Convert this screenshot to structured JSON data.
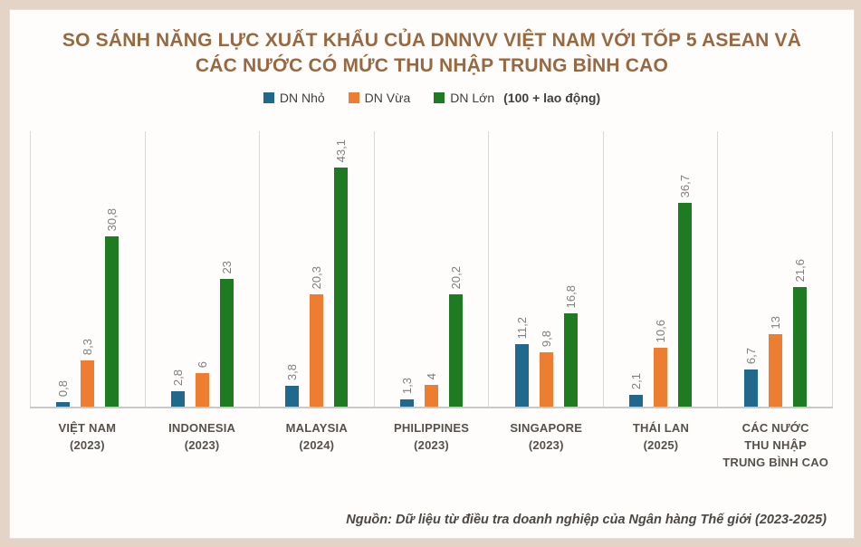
{
  "title": {
    "line1": "SO SÁNH NĂNG LỰC XUẤT KHẨU CỦA DNNVV VIỆT NAM VỚI TỐP 5 ASEAN VÀ",
    "line2": "CÁC NƯỚC CÓ MỨC THU NHẬP TRUNG BÌNH CAO"
  },
  "legend": {
    "items": [
      {
        "label": "DN Nhỏ",
        "suffix": "",
        "color": "#20698c"
      },
      {
        "label": "DN Vừa",
        "suffix": "",
        "color": "#ed7d31"
      },
      {
        "label": "DN Lớn",
        "suffix": "(100 + lao động)",
        "color": "#1e7b22"
      }
    ]
  },
  "chart_data": {
    "type": "bar",
    "title": "SO SÁNH NĂNG LỰC XUẤT KHẨU CỦA DNNVV VIỆT NAM VỚI TỐP 5 ASEAN VÀ CÁC NƯỚC CÓ MỨC THU NHẬP TRUNG BÌNH CAO",
    "xlabel": "",
    "ylabel": "",
    "ylim": [
      0,
      50
    ],
    "grid": "vertical-group-separators",
    "legend_position": "top-center",
    "value_label_style": "rotated-90-above-bar, comma decimal separator",
    "categories": [
      {
        "lines": [
          "VIỆT NAM",
          "(2023)"
        ]
      },
      {
        "lines": [
          "INDONESIA",
          "(2023)"
        ]
      },
      {
        "lines": [
          "MALAYSIA",
          "(2024)"
        ]
      },
      {
        "lines": [
          "PHILIPPINES",
          "(2023)"
        ]
      },
      {
        "lines": [
          "SINGAPORE",
          "(2023)"
        ]
      },
      {
        "lines": [
          "THÁI LAN",
          "(2025)"
        ]
      },
      {
        "lines": [
          "CÁC NƯỚC",
          "THU NHẬP",
          "TRUNG BÌNH CAO"
        ]
      }
    ],
    "series": [
      {
        "name": "DN Nhỏ",
        "color": "#20698c",
        "values": [
          0.8,
          2.8,
          3.8,
          1.3,
          11.2,
          2.1,
          6.7
        ],
        "labels": [
          "0,8",
          "2,8",
          "3,8",
          "1,3",
          "11,2",
          "2,1",
          "6,7"
        ]
      },
      {
        "name": "DN Vừa",
        "color": "#ed7d31",
        "values": [
          8.3,
          6,
          20.3,
          4,
          9.8,
          10.6,
          13
        ],
        "labels": [
          "8,3",
          "6",
          "20,3",
          "4",
          "9,8",
          "10,6",
          "13"
        ]
      },
      {
        "name": "DN Lớn (100 + lao động)",
        "color": "#1e7b22",
        "values": [
          30.8,
          23,
          43.1,
          20.2,
          16.8,
          36.7,
          21.6
        ],
        "labels": [
          "30,8",
          "23",
          "43,1",
          "20,2",
          "16,8",
          "36,7",
          "21,6"
        ]
      }
    ]
  },
  "source": "Nguồn: Dữ liệu từ điều tra doanh nghiệp của Ngân hàng Thế giới (2023-2025)",
  "colors": {
    "frame": "#e4d3c7",
    "card_bg": "#fefdfc",
    "title_text": "#986840",
    "category_text": "#56514b",
    "value_label_text": "#7f7f7f",
    "separator_line": "#d8d8d8",
    "baseline": "#c9c9c9"
  }
}
